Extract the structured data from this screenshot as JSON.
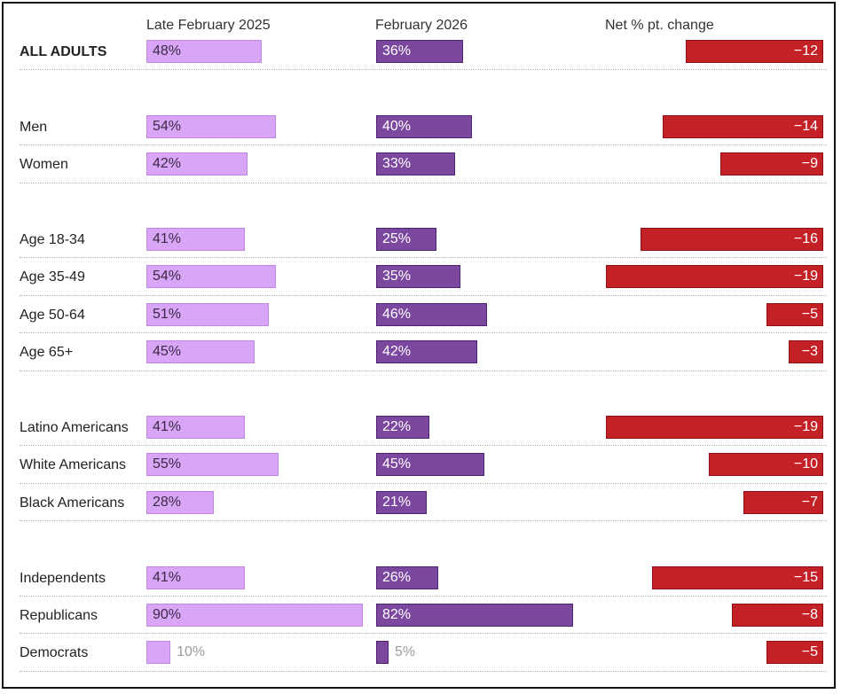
{
  "chart_data": {
    "type": "bar",
    "title": "",
    "columns": [
      "Late February 2025",
      "February 2026",
      "Net % pt. change"
    ],
    "rows": [
      {
        "group": 0,
        "label": "ALL ADULTS",
        "bold": true,
        "y2025": 48,
        "y2026": 36,
        "change": -12,
        "y2025_label": "48%",
        "y2026_label": "36%",
        "change_label": "−12"
      },
      {
        "group": 1,
        "label": "Men",
        "y2025": 54,
        "y2026": 40,
        "change": -14,
        "y2025_label": "54%",
        "y2026_label": "40%",
        "change_label": "−14"
      },
      {
        "group": 1,
        "label": "Women",
        "y2025": 42,
        "y2026": 33,
        "change": -9,
        "y2025_label": "42%",
        "y2026_label": "33%",
        "change_label": "−9"
      },
      {
        "group": 2,
        "label": "Age 18-34",
        "y2025": 41,
        "y2026": 25,
        "change": -16,
        "y2025_label": "41%",
        "y2026_label": "25%",
        "change_label": "−16"
      },
      {
        "group": 2,
        "label": "Age 35-49",
        "y2025": 54,
        "y2026": 35,
        "change": -19,
        "y2025_label": "54%",
        "y2026_label": "35%",
        "change_label": "−19"
      },
      {
        "group": 2,
        "label": "Age 50-64",
        "y2025": 51,
        "y2026": 46,
        "change": -5,
        "y2025_label": "51%",
        "y2026_label": "46%",
        "change_label": "−5"
      },
      {
        "group": 2,
        "label": "Age 65+",
        "y2025": 45,
        "y2026": 42,
        "change": -3,
        "y2025_label": "45%",
        "y2026_label": "42%",
        "change_label": "−3"
      },
      {
        "group": 3,
        "label": "Latino Americans",
        "y2025": 41,
        "y2026": 22,
        "change": -19,
        "y2025_label": "41%",
        "y2026_label": "22%",
        "change_label": "−19"
      },
      {
        "group": 3,
        "label": "White Americans",
        "y2025": 55,
        "y2026": 45,
        "change": -10,
        "y2025_label": "55%",
        "y2026_label": "45%",
        "change_label": "−10"
      },
      {
        "group": 3,
        "label": "Black Americans",
        "y2025": 28,
        "y2026": 21,
        "change": -7,
        "y2025_label": "28%",
        "y2026_label": "21%",
        "change_label": "−7"
      },
      {
        "group": 4,
        "label": "Independents",
        "y2025": 41,
        "y2026": 26,
        "change": -15,
        "y2025_label": "41%",
        "y2026_label": "26%",
        "change_label": "−15"
      },
      {
        "group": 4,
        "label": "Republicans",
        "y2025": 90,
        "y2026": 82,
        "change": -8,
        "y2025_label": "90%",
        "y2026_label": "82%",
        "change_label": "−8"
      },
      {
        "group": 4,
        "label": "Democrats",
        "y2025": 10,
        "y2026": 5,
        "change": -5,
        "y2025_label": "10%",
        "y2026_label": "5%",
        "change_label": "−5"
      }
    ],
    "colors": {
      "y2025": "#d9a5f6",
      "y2026": "#7b479f",
      "change": "#c42127"
    },
    "xlim_percent": [
      0,
      90
    ],
    "xlim_change": [
      -19,
      0
    ]
  }
}
